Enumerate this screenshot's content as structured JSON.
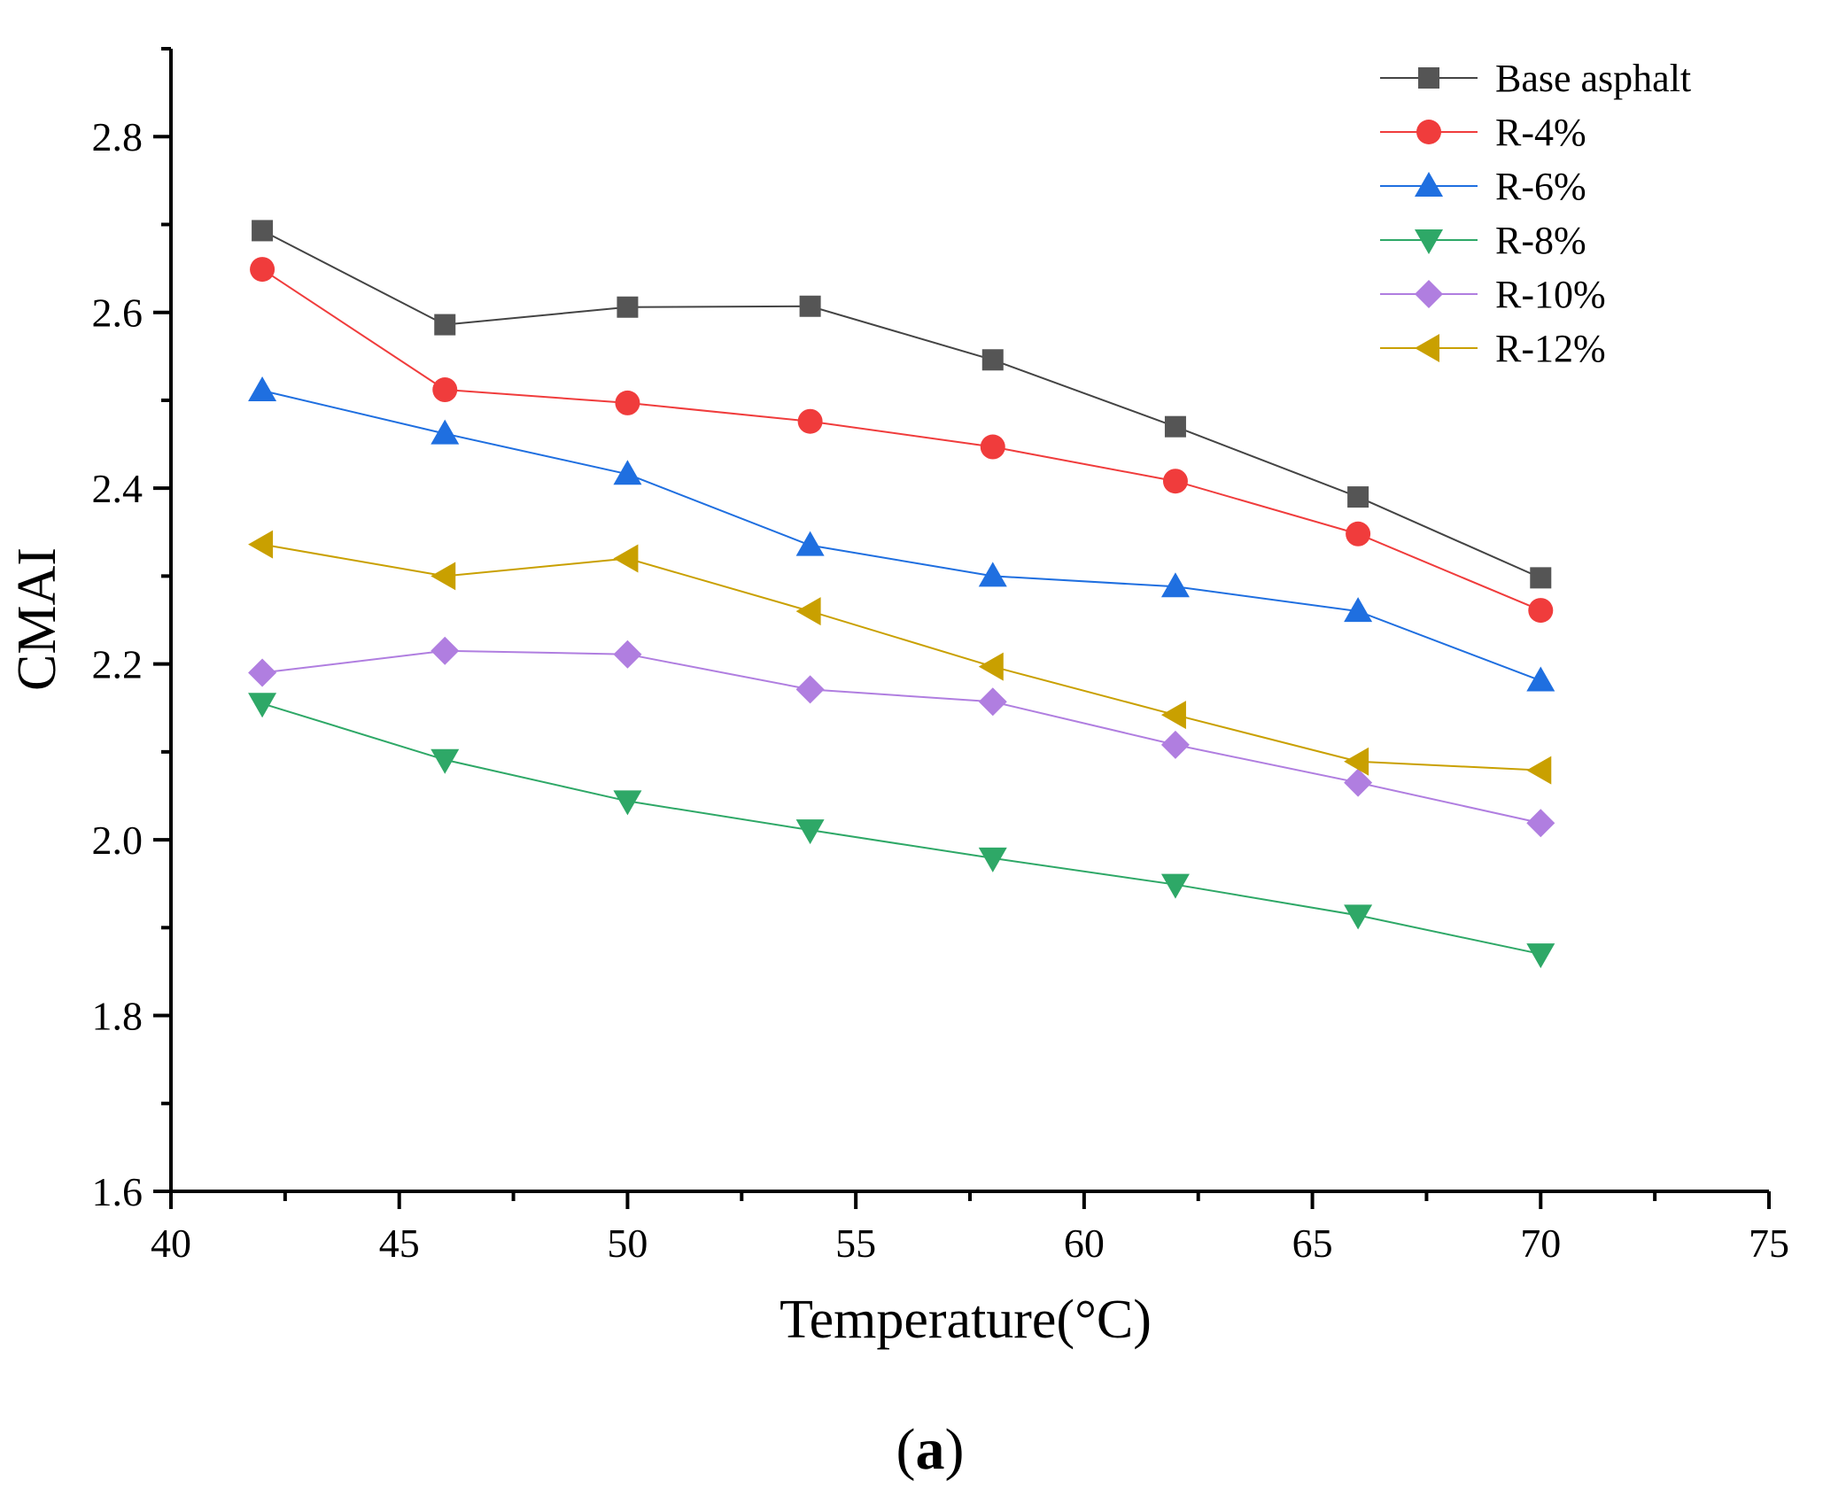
{
  "chart_data": {
    "type": "line",
    "xlabel": "Temperature(°C)",
    "ylabel": "CMAI",
    "panel_label": "(a)",
    "panel_label_parts": [
      "(",
      "a",
      ")"
    ],
    "xlim": [
      40,
      75
    ],
    "ylim": [
      1.6,
      2.9
    ],
    "xticks": [
      40,
      45,
      50,
      55,
      60,
      65,
      70,
      75
    ],
    "yticks": [
      1.6,
      1.8,
      2.0,
      2.2,
      2.4,
      2.6,
      2.8
    ],
    "x": [
      42,
      46,
      50,
      54,
      58,
      62,
      66,
      70
    ],
    "legend_position": "top-right",
    "grid": false,
    "series": [
      {
        "name": "Base asphalt",
        "color": "#555555",
        "line_color": "#444444",
        "marker": "square",
        "values": [
          2.693,
          2.586,
          2.606,
          2.607,
          2.546,
          2.47,
          2.39,
          2.298
        ]
      },
      {
        "name": "R-4%",
        "color": "#f03c3c",
        "line_color": "#f03c3c",
        "marker": "circle",
        "values": [
          2.649,
          2.512,
          2.497,
          2.476,
          2.447,
          2.408,
          2.348,
          2.261
        ]
      },
      {
        "name": "R-6%",
        "color": "#1f6fe0",
        "line_color": "#1f6fe0",
        "marker": "triangle-up",
        "values": [
          2.511,
          2.462,
          2.416,
          2.335,
          2.3,
          2.288,
          2.26,
          2.181
        ]
      },
      {
        "name": "R-8%",
        "color": "#2ea867",
        "line_color": "#2ea867",
        "marker": "triangle-down",
        "values": [
          2.155,
          2.091,
          2.044,
          2.011,
          1.979,
          1.949,
          1.914,
          1.87
        ]
      },
      {
        "name": "R-10%",
        "color": "#b07ee0",
        "line_color": "#b07ee0",
        "marker": "diamond",
        "values": [
          2.19,
          2.215,
          2.211,
          2.171,
          2.157,
          2.108,
          2.065,
          2.019
        ]
      },
      {
        "name": "R-12%",
        "color": "#c9a000",
        "line_color": "#c9a000",
        "marker": "triangle-left",
        "values": [
          2.336,
          2.3,
          2.32,
          2.26,
          2.197,
          2.142,
          2.089,
          2.079
        ]
      }
    ]
  }
}
